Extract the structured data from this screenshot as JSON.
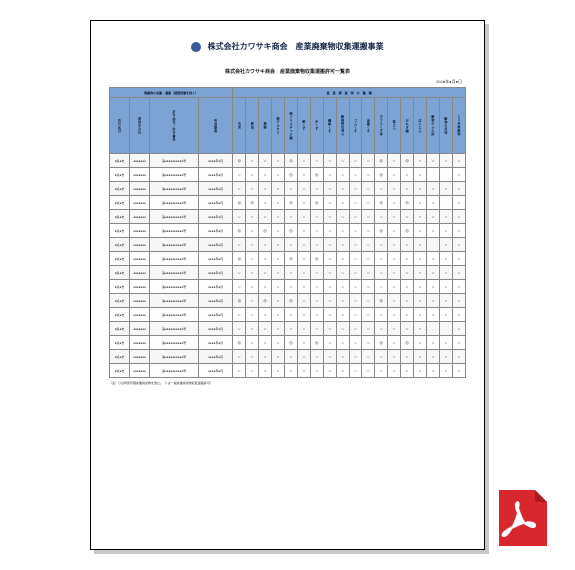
{
  "colors": {
    "header_bg": "#7ba3d4",
    "border": "#888888",
    "shadow": "#c8c8c8",
    "title": "#1a2a4a",
    "pdf_red": "#d8272d"
  },
  "doc": {
    "title": "株式会社カワサキ商会　産業廃棄物収集運搬事業",
    "subtitle": "株式会社カワサキ商会　産業廃棄物収集運搬許可一覧表",
    "date": "202●年●月●日",
    "group_left": "廃棄物の収集・運搬（積替保管を除く）",
    "group_right": "産　業　廃　棄　物　の　種　類",
    "left_headers": [
      "許可区分",
      "取得年月日",
      "許可品目／許可番号",
      "有効期限"
    ],
    "type_cols": [
      "汚泥",
      "廃油",
      "廃酸",
      "廃アルカリ",
      "廃プラスチック類",
      "紙くず",
      "木くず",
      "繊維くず",
      "動植物性残さ",
      "ゴムくず",
      "金属くず",
      "ガラスくず等",
      "鉱さい",
      "がれき類",
      "ばいじん",
      "動物のふん尿",
      "動物の死体",
      "１３号廃棄物"
    ],
    "rows": [
      {
        "c1": "●県●市",
        "c2": "●●●●●●●",
        "c3": "第●●●●●●●●●●号",
        "c4": "●●●●年●月",
        "m": [
          "◎",
          "○",
          "○",
          "○",
          "◎",
          "○",
          "○",
          "○",
          "○",
          "○",
          "○",
          "◎",
          "○",
          "◎",
          "○",
          "○",
          "○",
          "○"
        ]
      },
      {
        "c1": "●県●市",
        "c2": "●●●●●●●",
        "c3": "第●●●●●●●●●●号",
        "c4": "●●●●年●月",
        "m": [
          "○",
          "○",
          "○",
          "○",
          "◎",
          "○",
          "◎",
          "○",
          "○",
          "○",
          "○",
          "◎",
          "○",
          "○",
          "○",
          "",
          "",
          "○"
        ]
      },
      {
        "c1": "●県●市",
        "c2": "●●●●●●●",
        "c3": "第●●●●●●●●●●号",
        "c4": "●●●●年●月",
        "m": [
          "○",
          "○",
          "○",
          "○",
          "○",
          "○",
          "○",
          "○",
          "○",
          "○",
          "○",
          "○",
          "○",
          "○",
          "○",
          "○",
          "○",
          "○"
        ]
      },
      {
        "c1": "●県●市",
        "c2": "●●●●●●●",
        "c3": "第●●●●●●●●●●号",
        "c4": "●●●●年●月",
        "m": [
          "◎",
          "◎",
          "○",
          "○",
          "◎",
          "○",
          "◎",
          "○",
          "○",
          "○",
          "○",
          "◎",
          "○",
          "◎",
          "○",
          "○",
          "",
          "○"
        ]
      },
      {
        "c1": "●県●市",
        "c2": "●●●●●●●",
        "c3": "第●●●●●●●●●●号",
        "c4": "●●●●年●月",
        "m": [
          "○",
          "○",
          "○",
          "○",
          "○",
          "○",
          "○",
          "○",
          "○",
          "○",
          "○",
          "○",
          "○",
          "○",
          "○",
          "○",
          "○",
          "○"
        ]
      },
      {
        "c1": "●県●市",
        "c2": "●●●●●●●",
        "c3": "第●●●●●●●●●●号",
        "c4": "●●●●年●月",
        "m": [
          "◎",
          "○",
          "◎",
          "○",
          "◎",
          "○",
          "○",
          "○",
          "○",
          "○",
          "○",
          "◎",
          "○",
          "◎",
          "○",
          "○",
          "○",
          "○"
        ]
      },
      {
        "c1": "●県●市",
        "c2": "●●●●●●●",
        "c3": "第●●●●●●●●●●号",
        "c4": "●●●●年●月",
        "m": [
          "○",
          "○",
          "○",
          "○",
          "○",
          "○",
          "○",
          "○",
          "○",
          "○",
          "○",
          "○",
          "○",
          "○",
          "○",
          "",
          "○",
          "○"
        ]
      },
      {
        "c1": "●県●市",
        "c2": "●●●●●●●",
        "c3": "第●●●●●●●●●●号",
        "c4": "●●●●年●月",
        "m": [
          "◎",
          "○",
          "○",
          "○",
          "◎",
          "○",
          "◎",
          "○",
          "○",
          "○",
          "○",
          "○",
          "○",
          "○",
          "○",
          "○",
          "○",
          "○"
        ]
      },
      {
        "c1": "●県●市",
        "c2": "●●●●●●●",
        "c3": "第●●●●●●●●●●号",
        "c4": "●●●●年●月",
        "m": [
          "○",
          "○",
          "○",
          "○",
          "○",
          "○",
          "○",
          "○",
          "○",
          "○",
          "○",
          "○",
          "○",
          "○",
          "○",
          "○",
          "○",
          "○"
        ]
      },
      {
        "c1": "●県●市",
        "c2": "●●●●●●●",
        "c3": "第●●●●●●●●●●号",
        "c4": "●●●●年●月",
        "m": [
          "○",
          "○",
          "○",
          "○",
          "○",
          "○",
          "○",
          "○",
          "○",
          "○",
          "○",
          "○",
          "○",
          "○",
          "○",
          "○",
          "○",
          "○"
        ]
      },
      {
        "c1": "●県●市",
        "c2": "●●●●●●●",
        "c3": "第●●●●●●●●●●号",
        "c4": "●●●●年●月",
        "m": [
          "◎",
          "○",
          "◎",
          "○",
          "◎",
          "○",
          "○",
          "○",
          "○",
          "○",
          "○",
          "◎",
          "○",
          "○",
          "○",
          "○",
          "○",
          "○"
        ]
      },
      {
        "c1": "●県●市",
        "c2": "●●●●●●●",
        "c3": "第●●●●●●●●●●号",
        "c4": "●●●●年●月",
        "m": [
          "○",
          "○",
          "○",
          "○",
          "○",
          "○",
          "○",
          "○",
          "○",
          "○",
          "○",
          "○",
          "○",
          "○",
          "○",
          "○",
          "○",
          "○"
        ]
      },
      {
        "c1": "●県●市",
        "c2": "●●●●●●●",
        "c3": "第●●●●●●●●●●号",
        "c4": "●●●●年●月",
        "m": [
          "○",
          "○",
          "○",
          "○",
          "○",
          "○",
          "○",
          "○",
          "○",
          "○",
          "○",
          "○",
          "○",
          "○",
          "○",
          "",
          "",
          "○"
        ]
      },
      {
        "c1": "●県●市",
        "c2": "●●●●●●●",
        "c3": "第●●●●●●●●●●号",
        "c4": "●●●●年●月",
        "m": [
          "◎",
          "○",
          "○",
          "○",
          "◎",
          "○",
          "◎",
          "○",
          "○",
          "○",
          "○",
          "◎",
          "○",
          "◎",
          "○",
          "○",
          "○",
          "○"
        ]
      },
      {
        "c1": "●県●市",
        "c2": "●●●●●●●",
        "c3": "第●●●●●●●●●●号",
        "c4": "●●●●年●月",
        "m": [
          "○",
          "○",
          "○",
          "○",
          "○",
          "○",
          "○",
          "○",
          "○",
          "○",
          "○",
          "○",
          "○",
          "○",
          "○",
          "○",
          "○",
          "○"
        ]
      },
      {
        "c1": "●県●市",
        "c2": "●●●●●●●",
        "c3": "第●●●●●●●●●●号",
        "c4": "●●●●年●月",
        "m": [
          "○",
          "○",
          "○",
          "○",
          "○",
          "○",
          "○",
          "○",
          "○",
          "○",
          "○",
          "○",
          "○",
          "○",
          "○",
          "○",
          "○",
          "○"
        ]
      }
    ],
    "footnote": "（注）◎は特別管理産業廃棄物を含む。（○は一般産業廃棄物収集運搬許可）"
  }
}
